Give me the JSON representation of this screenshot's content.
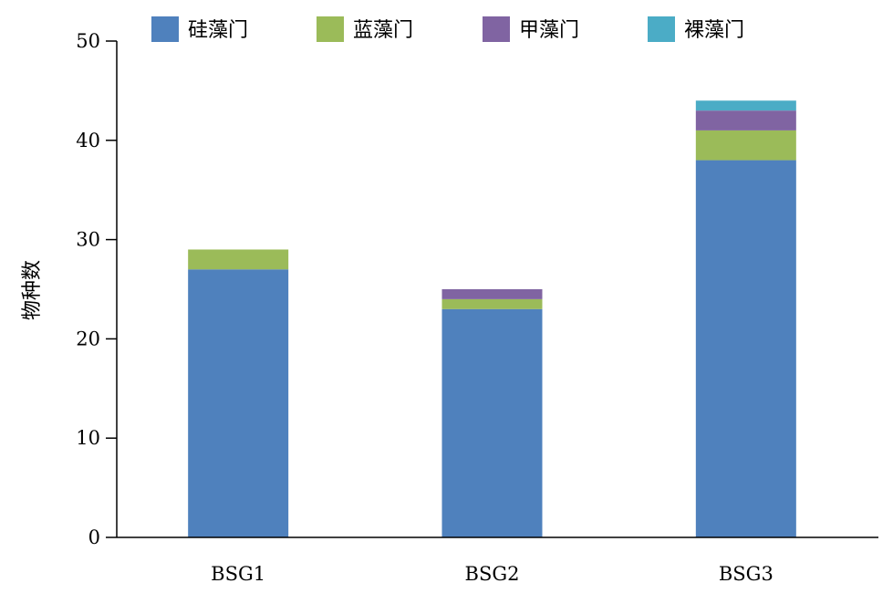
{
  "chart_data": {
    "type": "bar",
    "stacked": true,
    "title": "",
    "xlabel": "",
    "ylabel": "物种数",
    "ylim": [
      0,
      50
    ],
    "yticks": [
      0,
      10,
      20,
      30,
      40,
      50
    ],
    "grid": false,
    "legend_position": "top",
    "categories": [
      "BSG1",
      "BSG2",
      "BSG3"
    ],
    "series": [
      {
        "name": "硅藻门",
        "color": "#4f81bd",
        "values": [
          27,
          23,
          38
        ]
      },
      {
        "name": "蓝藻门",
        "color": "#9bbb59",
        "values": [
          2,
          1,
          3
        ]
      },
      {
        "name": "甲藻门",
        "color": "#8064a2",
        "values": [
          0,
          1,
          2
        ]
      },
      {
        "name": "裸藻门",
        "color": "#4bacc6",
        "values": [
          0,
          0,
          1
        ]
      }
    ]
  }
}
